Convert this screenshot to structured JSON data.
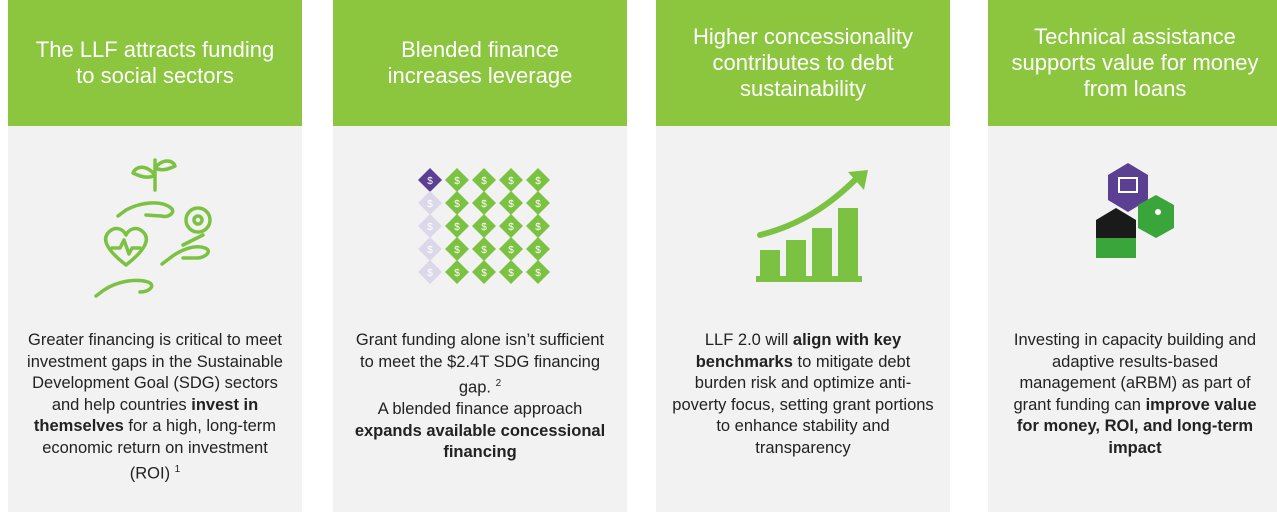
{
  "cards": [
    {
      "title": "The LLF attracts funding to social sectors",
      "body": [
        {
          "text": "Greater financing is critical to meet investment gaps in the Sustainable Development Goal (SDG) sectors and help countries ",
          "bold": false
        },
        {
          "text": "invest in themselves",
          "bold": true
        },
        {
          "text": " for a high, long-term economic return on investment (ROI)",
          "bold": false
        },
        {
          "text": "1",
          "sup": true
        }
      ]
    },
    {
      "title": "Blended finance increases leverage",
      "icon_symbol": "$",
      "body": [
        {
          "text": "Grant funding alone isn’t sufficient to meet the $2.4T SDG financing gap.",
          "bold": false
        },
        {
          "text": "2",
          "sup": true
        },
        {
          "text": "A blended finance approach ",
          "bold": false,
          "break": true
        },
        {
          "text": "expands available concessional financing",
          "bold": true
        }
      ]
    },
    {
      "title": "Higher concessionality contributes to debt sustainability",
      "body": [
        {
          "text": "LLF 2.0 will ",
          "bold": false
        },
        {
          "text": "align with key benchmarks",
          "bold": true
        },
        {
          "text": " to mitigate debt burden risk and optimize anti-poverty focus, setting grant portions to enhance stability and transparency",
          "bold": false
        }
      ]
    },
    {
      "title": "Technical assistance supports value for money from loans",
      "body": [
        {
          "text": "Investing in capacity building and adaptive results-based management (aRBM) as part of grant funding can ",
          "bold": false
        },
        {
          "text": "improve value for money, ROI, and long-term impact",
          "bold": true
        }
      ]
    }
  ]
}
